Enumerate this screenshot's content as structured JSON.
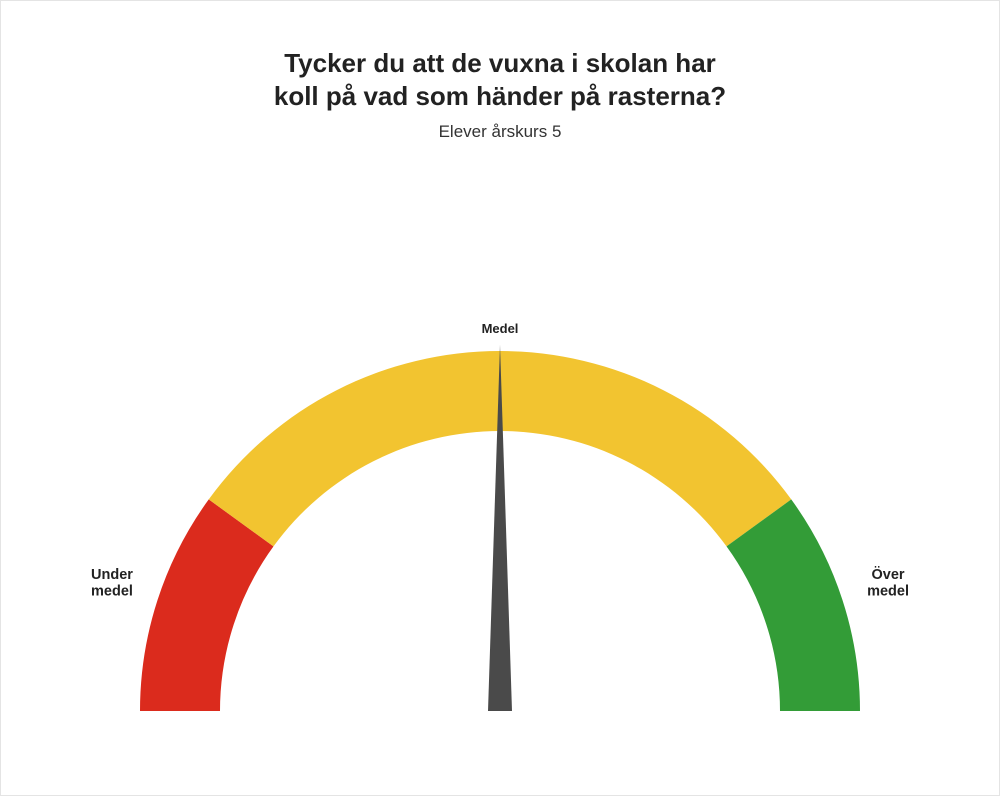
{
  "title_line1": "Tycker du att de vuxna i skolan har",
  "title_line2": "koll på vad som händer på rasterna?",
  "subtitle": "Elever årskurs 5",
  "gauge": {
    "type": "gauge",
    "background_color": "#ffffff",
    "outer_radius": 360,
    "inner_radius": 280,
    "segments": [
      {
        "name": "under",
        "start_deg": 180,
        "end_deg": 144,
        "color": "#db2b1d"
      },
      {
        "name": "middle",
        "start_deg": 144,
        "end_deg": 36,
        "color": "#f2c430"
      },
      {
        "name": "over",
        "start_deg": 36,
        "end_deg": 0,
        "color": "#339c37"
      }
    ],
    "needle": {
      "angle_deg": 90,
      "color": "#4a4a4a",
      "length": 366,
      "half_width": 12
    },
    "labels": {
      "top": {
        "line1": "Medel"
      },
      "left": {
        "line1": "Under",
        "line2": "medel"
      },
      "right": {
        "line1": "Över",
        "line2": "medel"
      }
    },
    "title_fontsize": 26,
    "subtitle_fontsize": 17,
    "label_fontsize": 14.5
  }
}
